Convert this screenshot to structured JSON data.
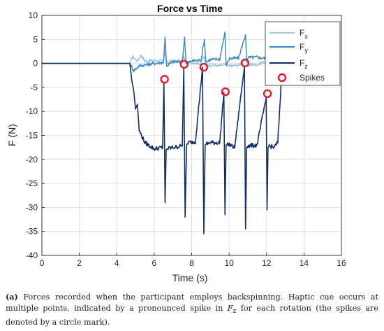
{
  "chart_data": {
    "type": "line",
    "title": "Force vs Time",
    "xlabel": "Time (s)",
    "ylabel": "F (N)",
    "xlim": [
      0,
      16
    ],
    "ylim": [
      -40,
      10
    ],
    "xticks": [
      "0",
      "2",
      "4",
      "6",
      "8",
      "10",
      "12",
      "14",
      "16"
    ],
    "yticks": [
      "10",
      "5",
      "0",
      "-5",
      "-10",
      "-15",
      "-20",
      "-25",
      "-30",
      "-35",
      "-40"
    ],
    "grid": true,
    "legend_position": "top-right",
    "legend": [
      {
        "label": "F",
        "sub": "x"
      },
      {
        "label": "F",
        "sub": "y"
      },
      {
        "label": "F",
        "sub": "z"
      },
      {
        "label": "Spikes",
        "sub": ""
      }
    ],
    "colors": {
      "fx": "#9cc3e2",
      "fy": "#3a86c2",
      "fz": "#0f2f66",
      "spikes": "#e5192b",
      "grid": "#dcdcdc"
    },
    "series": [
      {
        "key": "fx",
        "x": [
          0,
          4.7,
          4.85,
          5.1,
          5.3,
          5.5,
          6,
          6.5,
          6.58,
          6.66,
          7,
          7.5,
          7.58,
          7.68,
          8,
          8.5,
          8.65,
          8.75,
          9,
          9.5,
          9.8,
          9.9,
          10,
          10.5,
          10.9,
          11,
          11.5,
          12.05,
          12.15,
          12.5,
          12.7,
          12.9
        ],
        "y": [
          0,
          0,
          1.5,
          0.5,
          1.8,
          0.5,
          0.6,
          0.4,
          2.5,
          0.3,
          0.5,
          0.3,
          1.5,
          0.1,
          0.2,
          0,
          1.5,
          -0.4,
          -0.3,
          -0.5,
          -0.2,
          -0.6,
          -0.5,
          -0.4,
          0.8,
          -0.3,
          -0.2,
          0.5,
          -0.7,
          -0.3,
          0.5,
          0
        ]
      },
      {
        "key": "fy",
        "x": [
          0,
          4.7,
          4.9,
          5.2,
          5.5,
          6,
          6.5,
          6.58,
          6.66,
          7,
          7.5,
          7.62,
          7.7,
          8,
          8.5,
          8.68,
          8.76,
          9,
          9.5,
          9.78,
          9.84,
          10,
          10.5,
          10.88,
          10.94,
          11,
          11.5,
          12.0,
          12.05,
          12.1,
          12.5,
          12.75,
          12.9
        ],
        "y": [
          0,
          0,
          -1.5,
          -0.5,
          -0.3,
          0,
          0.2,
          5.5,
          -0.5,
          0.3,
          0.4,
          5.5,
          0,
          0.5,
          0.7,
          5.0,
          0.3,
          0.8,
          0.9,
          6.5,
          -0.5,
          1.0,
          1.1,
          6.0,
          0.3,
          1.2,
          1.3,
          1.0,
          5.8,
          0.8,
          1.5,
          0.5,
          0
        ]
      },
      {
        "key": "fz",
        "x": [
          0,
          4.7,
          4.8,
          4.9,
          5.0,
          5.1,
          5.2,
          5.5,
          6.0,
          6.45,
          6.52,
          6.58,
          6.64,
          6.7,
          7.0,
          7.5,
          7.58,
          7.65,
          7.73,
          7.8,
          8.2,
          8.58,
          8.65,
          8.72,
          8.8,
          9.0,
          9.5,
          9.72,
          9.78,
          9.84,
          9.92,
          10.3,
          10.82,
          10.88,
          10.94,
          11.0,
          11.5,
          11.98,
          12.03,
          12.08,
          12.15,
          12.4,
          12.6,
          12.8,
          12.9
        ],
        "y": [
          0,
          0,
          -3.5,
          -5.5,
          -9.5,
          -8.5,
          -14,
          -16.5,
          -17.8,
          -17.5,
          -4,
          -29,
          -18,
          -17.8,
          -17.5,
          -17.2,
          -1,
          -32,
          -17,
          -16.5,
          -16.3,
          -0.8,
          -35.5,
          -17,
          -16.8,
          -16.5,
          -16.5,
          -6,
          -31.5,
          -17,
          -16.8,
          -17.5,
          -0.5,
          -34.5,
          -17.5,
          -17.2,
          -17,
          -7,
          -30.5,
          -17.5,
          -17.2,
          -17.5,
          -16.5,
          -3,
          0
        ]
      }
    ],
    "spikes": {
      "x": [
        6.55,
        7.6,
        8.65,
        9.8,
        10.85,
        12.05
      ],
      "y": [
        -3.3,
        -0.2,
        -0.8,
        -5.9,
        0.1,
        -6.3
      ]
    }
  },
  "caption": {
    "label": "(a)",
    "text_before": " Forces recorded when the participant employs backspinning. Haptic cue occurs at multiple points, indicated by a pronounced spike in ",
    "symbol": "F",
    "symbol_sub": "z",
    "text_after": " for each rotation (the spikes are denoted by a circle mark)."
  }
}
